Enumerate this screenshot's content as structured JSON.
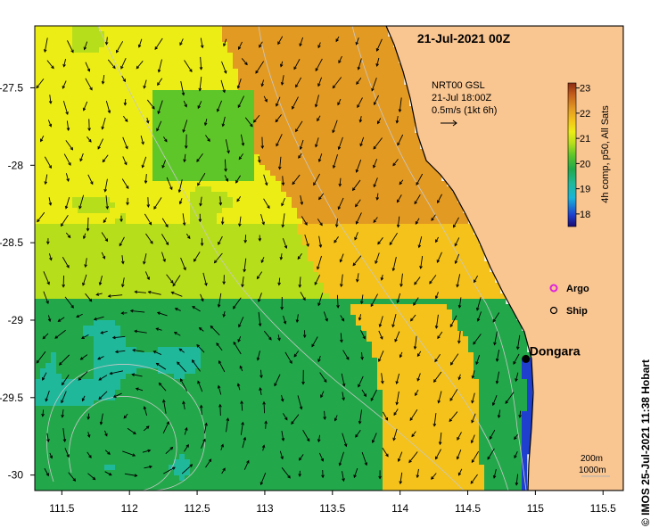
{
  "map": {
    "title": "21-Jul-2021 00Z",
    "credit": "© IMOS 25-Jul-2021 11:38 Hobart",
    "velocity_legend": {
      "product": "NRT00 GSL",
      "time": "21-Jul 18:00Z",
      "scale": "0.5m/s (1kt 6h)"
    },
    "colorbar": {
      "label": "4h comp, p50, All Sats",
      "min": 17.5,
      "max": 23.2,
      "ticks": [
        "23",
        "22",
        "21",
        "20",
        "19",
        "18"
      ],
      "colors": [
        "#1a0a6e",
        "#1f3fcf",
        "#19b4d9",
        "#20b89a",
        "#22a84a",
        "#5fc62a",
        "#b7de1b",
        "#eded16",
        "#f4c21a",
        "#e39a22",
        "#c45d1c",
        "#8c2a12"
      ]
    },
    "markers": {
      "argo": {
        "label": "Argo",
        "color": "#dd22dd"
      },
      "ship": {
        "label": "Ship"
      }
    },
    "place": {
      "name": "Dongara",
      "lon": 114.93,
      "lat": -29.25
    },
    "contours": {
      "label_200": "200m",
      "label_1000": "1000m"
    },
    "x_axis": {
      "ticks": [
        "111.5",
        "112",
        "112.5",
        "113",
        "113.5",
        "114",
        "114.5",
        "115",
        "115.5"
      ]
    },
    "y_axis": {
      "ticks": [
        "-27.5",
        "-28",
        "-28.5",
        "-29",
        "-29.5",
        "-30"
      ]
    },
    "extent": {
      "lon_min": 111.3,
      "lon_max": 115.65,
      "lat_min": -30.1,
      "lat_max": -27.1
    },
    "colors": {
      "land": "#f9c591",
      "cloud": "#ffffff",
      "coast": "#000000"
    }
  }
}
